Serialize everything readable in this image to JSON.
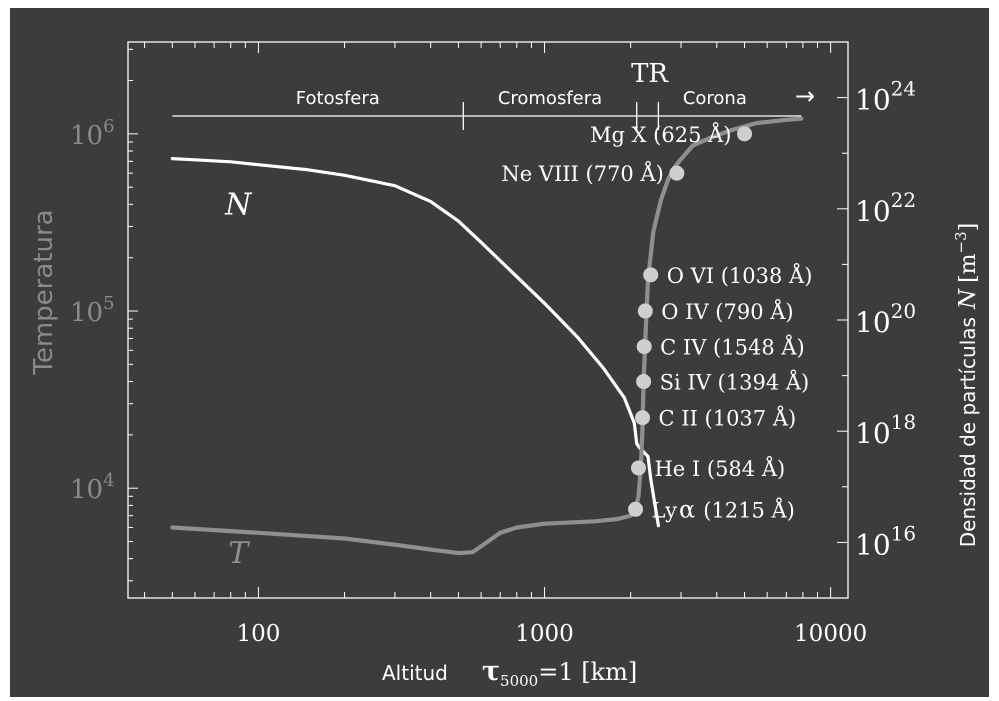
{
  "colors": {
    "background": "#3c3c3c",
    "frame": "#ffffff",
    "N_line": "#ffffff",
    "T_line": "#8f8f8f",
    "temperature_label": "#8a8a8a",
    "right_axis_text": "#ffffff",
    "marker": "#cfcfcf"
  },
  "chart_data": {
    "type": "line",
    "title": "",
    "xlabel": "Altitud",
    "xlabel_math": "τ",
    "xlabel_sub": "5000",
    "xlabel_tail": "=1  [km]",
    "ylabel_left": "Temperatura",
    "ylabel_right": "Densidad de partículas",
    "ylabel_right_math": "N",
    "ylabel_right_unit": "[m",
    "ylabel_right_unit_sup": "−3",
    "ylabel_right_unit_close": "]",
    "x_scale": "log",
    "xlim": [
      35,
      11500
    ],
    "left_scale": "log",
    "left_ylim": [
      2400,
      3300000
    ],
    "right_scale": "log",
    "right_ylim": [
      1000000000000000.0,
      1e+25
    ],
    "x_ticks": [
      {
        "value": 100,
        "label": "100"
      },
      {
        "value": 1000,
        "label": "1000"
      },
      {
        "value": 10000,
        "label": "10000"
      }
    ],
    "left_ticks": [
      {
        "value": 10000,
        "base": "10",
        "exp": "4"
      },
      {
        "value": 100000,
        "base": "10",
        "exp": "5"
      },
      {
        "value": 1000000,
        "base": "10",
        "exp": "6"
      }
    ],
    "right_ticks": [
      {
        "value": 1e+16,
        "base": "10",
        "exp": "16"
      },
      {
        "value": 1e+18,
        "base": "10",
        "exp": "18"
      },
      {
        "value": 1e+20,
        "base": "10",
        "exp": "20"
      },
      {
        "value": 1e+22,
        "base": "10",
        "exp": "22"
      },
      {
        "value": 1e+24,
        "base": "10",
        "exp": "24"
      }
    ],
    "regions": {
      "labels": [
        "Fotosfera",
        "Cromosfera",
        "TR",
        "Corona"
      ],
      "arrow": "→",
      "boundaries": [
        520,
        2100,
        2500
      ],
      "start": 50,
      "end": 7900
    },
    "series": [
      {
        "name": "N",
        "axis": "right",
        "x": [
          50,
          60,
          80,
          100,
          150,
          200,
          300,
          400,
          500,
          600,
          800,
          1000,
          1300,
          1600,
          1900,
          2060,
          2100,
          2150,
          2300,
          2350,
          2500
        ],
        "values": [
          8e+22,
          7.6e+22,
          7e+22,
          6.2e+22,
          5e+22,
          4e+22,
          2.6e+22,
          1.35e+22,
          6e+21,
          2.5e+21,
          6e+20,
          2e+20,
          5e+19,
          1.4e+19,
          4e+18,
          1.4e+18,
          6e+17,
          5e+17,
          3.5e+17,
          1.4e+17,
          2e+16
        ]
      },
      {
        "name": "T",
        "axis": "left",
        "x": [
          50,
          100,
          200,
          300,
          400,
          500,
          560,
          600,
          700,
          800,
          1000,
          1500,
          1800,
          2000,
          2080,
          2130,
          2170,
          2200,
          2220,
          2260,
          2300,
          2400,
          2550,
          2700,
          2850,
          3000,
          3300,
          3800,
          4500,
          5500,
          7000,
          7900
        ],
        "values": [
          6000,
          5600,
          5200,
          4800,
          4500,
          4300,
          4350,
          4700,
          5600,
          6000,
          6300,
          6500,
          6700,
          7000,
          7600,
          9000,
          13000,
          22000,
          40000,
          80000,
          150000,
          280000,
          420000,
          550000,
          650000,
          720000,
          860000,
          950000,
          1050000,
          1150000,
          1200000,
          1220000
        ]
      }
    ],
    "series_labels": [
      {
        "text": "N",
        "x": 85,
        "y": 400000,
        "axis": "left"
      },
      {
        "text": "T",
        "x": 85,
        "y": 4300,
        "axis": "left"
      }
    ],
    "markers": [
      {
        "label": "Ly",
        "greek": "α",
        "paren": "(1215 Å)",
        "x": 2080,
        "y": 7600
      },
      {
        "label": "He I (584 Å)",
        "greek": "",
        "paren": "",
        "x": 2130,
        "y": 13000
      },
      {
        "label": "C II  (1037 Å)",
        "greek": "",
        "paren": "",
        "x": 2200,
        "y": 25000
      },
      {
        "label": "Si IV (1394 Å)",
        "greek": "",
        "paren": "",
        "x": 2220,
        "y": 40000
      },
      {
        "label": "C IV (1548 Å)",
        "greek": "",
        "paren": "",
        "x": 2230,
        "y": 63000
      },
      {
        "label": "O IV (790 Å)",
        "greek": "",
        "paren": "",
        "x": 2250,
        "y": 100000
      },
      {
        "label": "O VI (1038 Å)",
        "greek": "",
        "paren": "",
        "x": 2350,
        "y": 160000
      },
      {
        "label": "Ne VIII (770 Å)",
        "greek": "",
        "paren": "",
        "x": 2900,
        "y": 600000
      },
      {
        "label": "Mg X (625 Å)",
        "greek": "",
        "paren": "",
        "x": 5000,
        "y": 1000000
      }
    ]
  }
}
